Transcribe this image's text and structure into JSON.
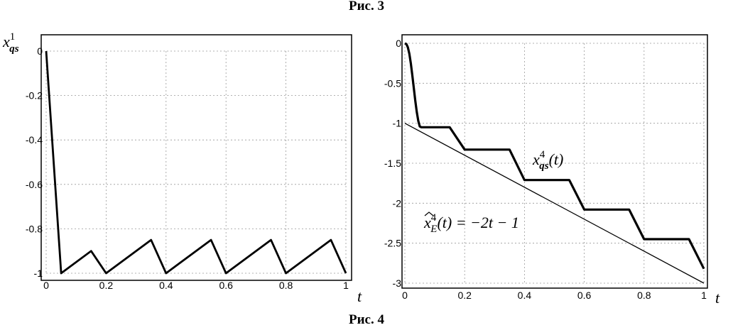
{
  "captions": {
    "top": "Рис. 3",
    "bottom": "Рис. 4"
  },
  "chart_data": [
    {
      "type": "line",
      "title": "",
      "xlabel": "t",
      "ylabel": {
        "base": "x",
        "sub": "qs",
        "sup": "1"
      },
      "xlim": [
        0,
        1
      ],
      "ylim": [
        -1,
        0
      ],
      "xticks": [
        "0",
        "0.2",
        "0.4",
        "0.6",
        "0.8",
        "1"
      ],
      "xtick_values": [
        0,
        0.2,
        0.4,
        0.6,
        0.8,
        1
      ],
      "yticks": [
        "0",
        "-0.2",
        "-0.4",
        "-0.6",
        "-0.8",
        "-1"
      ],
      "ytick_values": [
        0,
        -0.2,
        -0.4,
        -0.6,
        -0.8,
        -1
      ],
      "grid": true,
      "series": [
        {
          "x": [
            0,
            0.05,
            0.15,
            0.2,
            0.35,
            0.4,
            0.55,
            0.6,
            0.75,
            0.8,
            0.95,
            1.0
          ],
          "y": [
            0,
            -1.0,
            -0.9,
            -1.0,
            -0.85,
            -1.0,
            -0.85,
            -1.0,
            -0.85,
            -1.0,
            -0.85,
            -1.0
          ]
        }
      ]
    },
    {
      "type": "line",
      "title": "",
      "xlabel": "t",
      "xlim": [
        0,
        1
      ],
      "ylim": [
        -3,
        0
      ],
      "xticks": [
        "0",
        "0.2",
        "0.4",
        "0.6",
        "0.8",
        "1"
      ],
      "xtick_values": [
        0,
        0.2,
        0.4,
        0.6,
        0.8,
        1
      ],
      "yticks": [
        "0",
        "-0.5",
        "-1",
        "-1.5",
        "-2",
        "-2.5",
        "-3"
      ],
      "ytick_values": [
        0,
        -0.5,
        -1,
        -1.5,
        -2,
        -2.5,
        -3
      ],
      "grid": true,
      "series": [
        {
          "name": "x_qs^4(t)",
          "x": [
            0,
            0.005,
            0.01,
            0.015,
            0.02,
            0.025,
            0.03,
            0.035,
            0.04,
            0.045,
            0.05,
            0.055,
            0.1,
            0.15,
            0.2,
            0.35,
            0.4,
            0.55,
            0.6,
            0.75,
            0.8,
            0.95,
            1.0
          ],
          "y": [
            0,
            -0.01,
            -0.05,
            -0.13,
            -0.25,
            -0.4,
            -0.56,
            -0.72,
            -0.86,
            -0.97,
            -1.04,
            -1.05,
            -1.05,
            -1.05,
            -1.33,
            -1.33,
            -1.71,
            -1.71,
            -2.08,
            -2.08,
            -2.45,
            -2.45,
            -2.82
          ]
        },
        {
          "name": "x_E^4(t) = -2t - 1",
          "x": [
            0,
            1
          ],
          "y": [
            -1,
            -3
          ]
        }
      ],
      "annotations": [
        {
          "id": "curve",
          "base": "x",
          "sup": "4",
          "sub": "qs",
          "rest": "(t)"
        },
        {
          "id": "line",
          "base": "x",
          "sup": "4",
          "sub": "E",
          "rest": "(t) = −2t − 1"
        }
      ]
    }
  ]
}
